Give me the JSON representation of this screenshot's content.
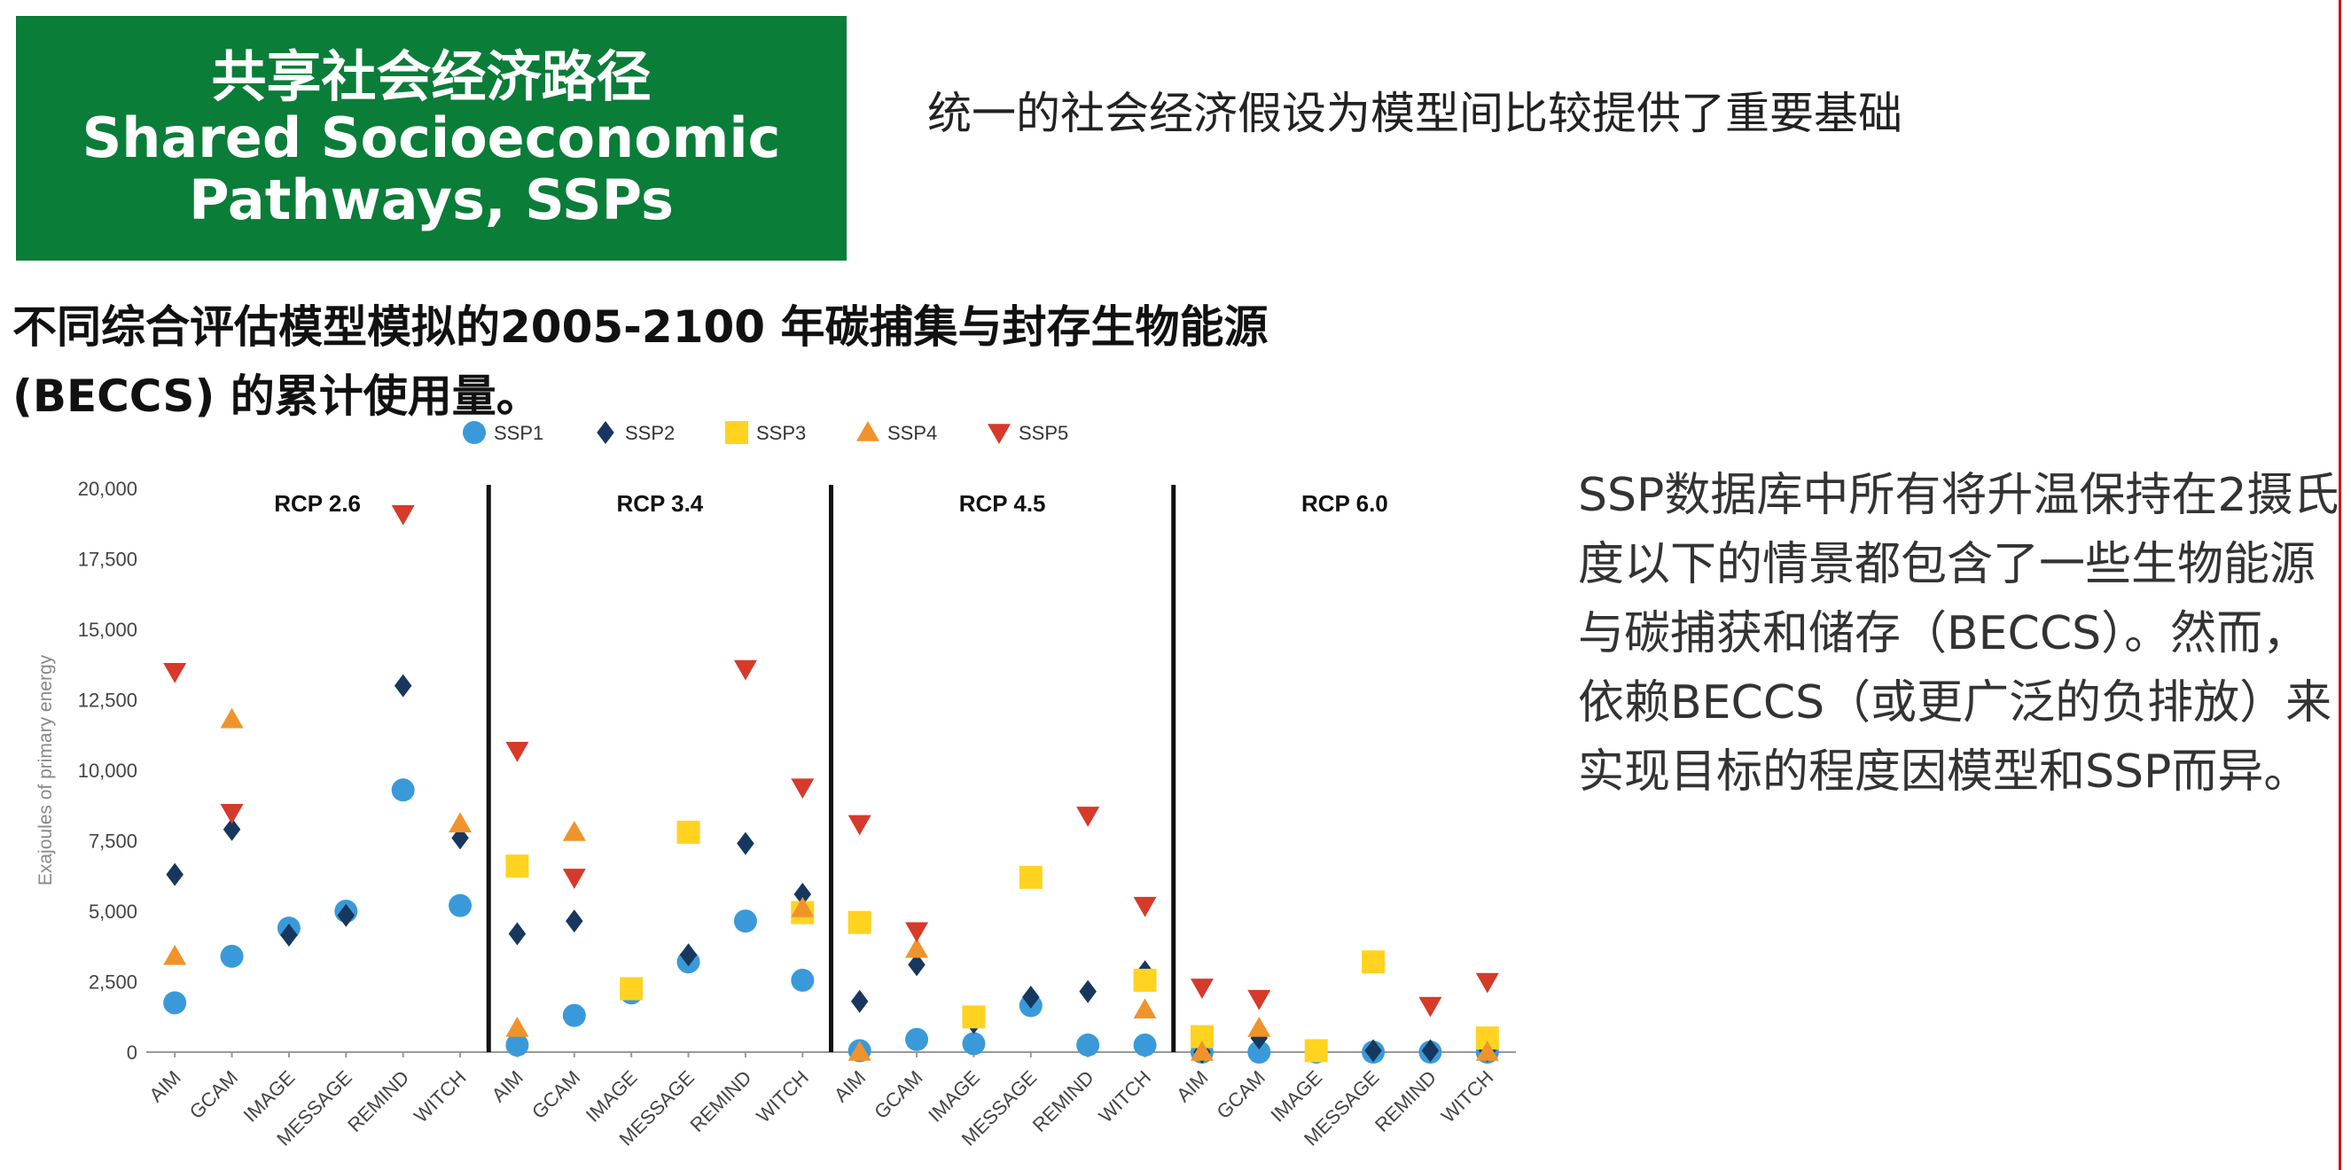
{
  "header": {
    "title_cn": "共享社会经济路径",
    "title_en_1": "Shared Socioeconomic",
    "title_en_2": "Pathways, SSPs"
  },
  "subtitle": "统一的社会经济假设为模型间比较提供了重要基础",
  "chart_title": "不同综合评估模型模拟的2005-2100 年碳捕集与封存生物能源 (BECCS) 的累计使用量。",
  "side_text": "SSP数据库中所有将升温保持在2摄氏度以下的情景都包含了一些生物能源与碳捕获和储存（BECCS）。然而，依赖BECCS（或更广泛的负排放）来实现目标的程度因模型和SSP而异。",
  "colors": {
    "header_bg": "#0a7d38",
    "SSP1": "#3a9ad9",
    "SSP2": "#17375e",
    "SSP3": "#ffd320",
    "SSP4": "#f0932b",
    "SSP5": "#d63a2a"
  },
  "chart_data": {
    "type": "scatter",
    "ylabel": "Exajoules of primary energy",
    "ylim": [
      0,
      20000
    ],
    "yticks": [
      "0",
      "2,500",
      "5,000",
      "7,500",
      "10,000",
      "12,500",
      "15,000",
      "17,500",
      "20,000"
    ],
    "ytick_values": [
      0,
      2500,
      5000,
      7500,
      10000,
      12500,
      15000,
      17500,
      20000
    ],
    "models": [
      "AIM",
      "GCAM",
      "IMAGE",
      "MESSAGE",
      "REMIND",
      "WITCH"
    ],
    "legend": [
      {
        "name": "SSP1",
        "shape": "circle"
      },
      {
        "name": "SSP2",
        "shape": "diamond"
      },
      {
        "name": "SSP3",
        "shape": "square"
      },
      {
        "name": "SSP4",
        "shape": "triangle-up"
      },
      {
        "name": "SSP5",
        "shape": "triangle-down"
      }
    ],
    "legend_position": "top",
    "grid": false,
    "panels": [
      {
        "title": "RCP 2.6",
        "series": {
          "SSP1": [
            1750,
            3400,
            4400,
            5000,
            9300,
            5200
          ],
          "SSP2": [
            6300,
            7900,
            4150,
            4850,
            13000,
            7600
          ],
          "SSP3": [
            null,
            null,
            null,
            null,
            null,
            null
          ],
          "SSP4": [
            3400,
            11800,
            null,
            null,
            null,
            8100
          ],
          "SSP5": [
            13500,
            8500,
            null,
            null,
            19100,
            null
          ]
        }
      },
      {
        "title": "RCP 3.4",
        "series": {
          "SSP1": [
            250,
            1300,
            2100,
            3200,
            4650,
            2550
          ],
          "SSP2": [
            4200,
            4650,
            2250,
            3450,
            7400,
            5600
          ],
          "SSP3": [
            6600,
            null,
            2250,
            7800,
            null,
            4950
          ],
          "SSP4": [
            850,
            7800,
            null,
            null,
            null,
            5100
          ],
          "SSP5": [
            10700,
            6200,
            null,
            null,
            13600,
            9400
          ]
        }
      },
      {
        "title": "RCP 4.5",
        "series": {
          "SSP1": [
            50,
            450,
            300,
            1650,
            250,
            250
          ],
          "SSP2": [
            1800,
            3100,
            1050,
            1950,
            2150,
            2850
          ],
          "SSP3": [
            4600,
            null,
            1250,
            6200,
            null,
            2550
          ],
          "SSP4": [
            0,
            3650,
            null,
            null,
            null,
            1500
          ],
          "SSP5": [
            8100,
            4300,
            null,
            null,
            8400,
            5200
          ]
        }
      },
      {
        "title": "RCP 6.0",
        "series": {
          "SSP1": [
            0,
            0,
            0,
            0,
            0,
            0
          ],
          "SSP2": [
            0,
            500,
            50,
            50,
            50,
            50
          ],
          "SSP3": [
            550,
            null,
            50,
            3200,
            null,
            500
          ],
          "SSP4": [
            0,
            850,
            null,
            null,
            null,
            0
          ],
          "SSP5": [
            2300,
            1900,
            null,
            null,
            1650,
            2500
          ]
        }
      }
    ]
  }
}
